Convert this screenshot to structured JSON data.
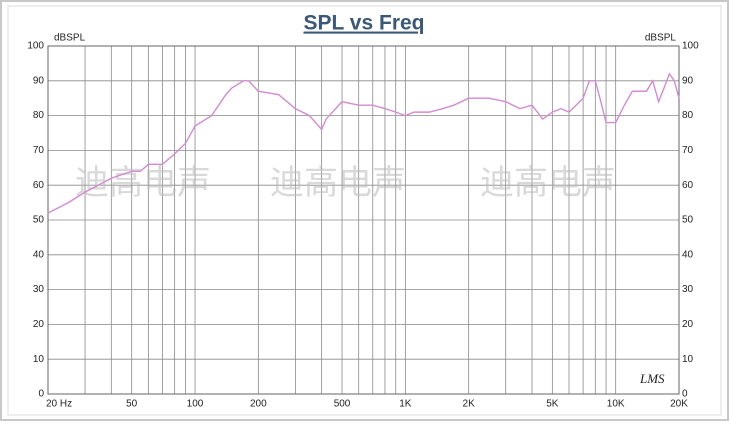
{
  "chart_data": {
    "type": "line",
    "title": "SPL vs Freq",
    "y_label": "dBSPL",
    "y2_label": "dBSPL",
    "watermark": "迪高电声",
    "logo": "LMS",
    "xscale": "log",
    "grid": true,
    "xlim": [
      20,
      20000
    ],
    "xticks": [
      {
        "value": 20,
        "label": "20 Hz"
      },
      50,
      100,
      200,
      500,
      {
        "value": 1000,
        "label": "1K"
      },
      {
        "value": 2000,
        "label": "2K"
      },
      {
        "value": 5000,
        "label": "5K"
      },
      {
        "value": 10000,
        "label": "10K"
      },
      {
        "value": 20000,
        "label": "20K"
      }
    ],
    "xgrid": [
      20,
      30,
      40,
      50,
      60,
      70,
      80,
      90,
      100,
      200,
      300,
      400,
      500,
      600,
      700,
      800,
      900,
      1000,
      2000,
      3000,
      4000,
      5000,
      6000,
      7000,
      8000,
      9000,
      10000,
      20000
    ],
    "ylim": [
      0,
      100
    ],
    "yticks": [
      0,
      10,
      20,
      30,
      40,
      50,
      60,
      70,
      80,
      90,
      100
    ],
    "y2lim": [
      0,
      100
    ],
    "y2ticks": [
      0,
      10,
      20,
      30,
      40,
      50,
      60,
      70,
      80,
      90,
      100
    ],
    "x": [
      20,
      25,
      30,
      40,
      50,
      55,
      60,
      70,
      80,
      90,
      100,
      120,
      140,
      150,
      170,
      180,
      200,
      250,
      300,
      350,
      400,
      420,
      500,
      600,
      700,
      800,
      900,
      1000,
      1100,
      1300,
      1500,
      1700,
      2000,
      2500,
      3000,
      3500,
      4000,
      4500,
      5000,
      5500,
      6000,
      7000,
      7500,
      8000,
      8500,
      9000,
      10000,
      11000,
      12000,
      14000,
      15000,
      16000,
      17000,
      18000,
      19000,
      20000
    ],
    "series": [
      {
        "color": "#d48ad4",
        "values": [
          52,
          55,
          58,
          62,
          64,
          64,
          66,
          66,
          69,
          72,
          77,
          80,
          86,
          88,
          90,
          90,
          87,
          86,
          82,
          80,
          76,
          79,
          84,
          83,
          83,
          82,
          81,
          80,
          81,
          81,
          82,
          83,
          85,
          85,
          84,
          82,
          83,
          79,
          81,
          82,
          81,
          85,
          90,
          90,
          84,
          78,
          78,
          83,
          87,
          87,
          90,
          84,
          88,
          92,
          90,
          85
        ]
      }
    ]
  }
}
